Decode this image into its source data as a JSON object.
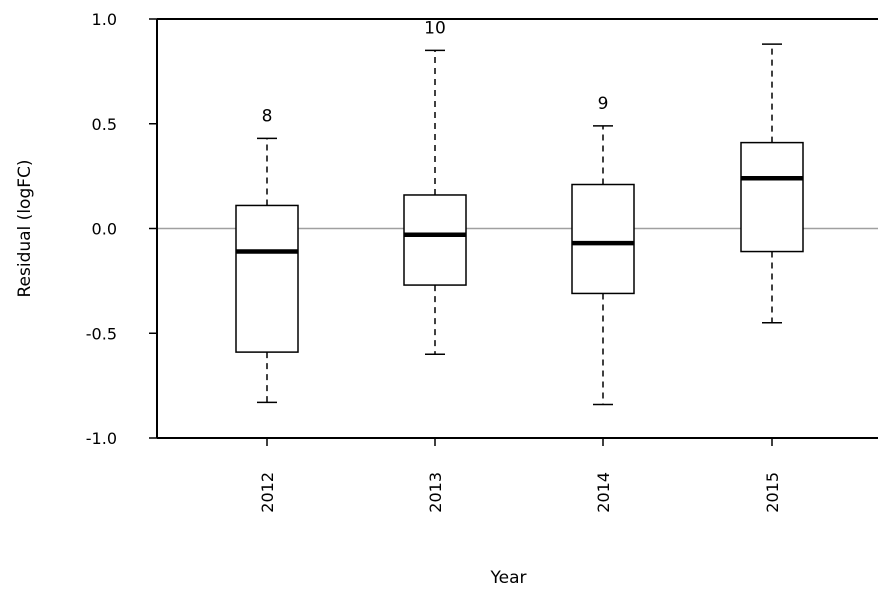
{
  "chart_data": {
    "type": "boxplot",
    "title": "",
    "xlabel": "Year",
    "ylabel": "Residual (logFC)",
    "ylim": [
      -1.0,
      1.0
    ],
    "y_ticks": [
      -1.0,
      -0.5,
      0.0,
      0.5,
      1.0
    ],
    "y_tick_labels": [
      "-1.0",
      "-0.5",
      "0.0",
      "0.5",
      "1.0"
    ],
    "reference_line": 0.0,
    "categories": [
      "2012",
      "2013",
      "2014",
      "2015"
    ],
    "boxes": [
      {
        "category": "2012",
        "whisker_low": -0.83,
        "q1": -0.59,
        "median": -0.11,
        "q3": 0.11,
        "whisker_high": 0.43,
        "count_label": "8"
      },
      {
        "category": "2013",
        "whisker_low": -0.6,
        "q1": -0.27,
        "median": -0.03,
        "q3": 0.16,
        "whisker_high": 0.85,
        "count_label": "10"
      },
      {
        "category": "2014",
        "whisker_low": -0.84,
        "q1": -0.31,
        "median": -0.07,
        "q3": 0.21,
        "whisker_high": 0.49,
        "count_label": "9"
      },
      {
        "category": "2015",
        "whisker_low": -0.45,
        "q1": -0.11,
        "median": 0.24,
        "q3": 0.41,
        "whisker_high": 0.88,
        "count_label": ""
      }
    ],
    "colors": {
      "box_fill": "#ffffff",
      "stroke": "#000000",
      "reference_line": "#a0a0a0"
    }
  }
}
